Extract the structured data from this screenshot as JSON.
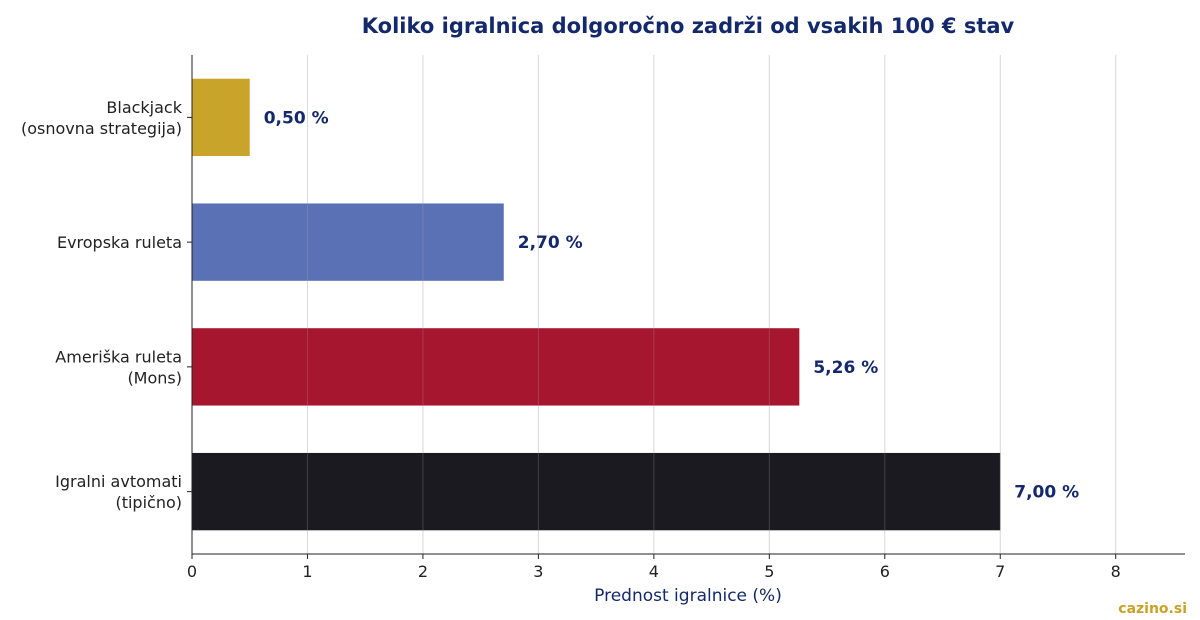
{
  "chart_data": {
    "type": "bar",
    "orientation": "horizontal",
    "title": "Koliko igralnica dolgoročno zadrži od vsakih 100 € stav",
    "xlabel": "Prednost igralnice (%)",
    "ylabel": "",
    "xlim": [
      0,
      8.6
    ],
    "xticks": [
      "0",
      "1",
      "2",
      "3",
      "4",
      "5",
      "6",
      "7",
      "8"
    ],
    "grid": "vertical",
    "categories": [
      [
        "Blackjack",
        "(osnovna strategija)"
      ],
      [
        "Evropska ruleta"
      ],
      [
        "Ameriška ruleta",
        "(Mons)"
      ],
      [
        "Igralni avtomati",
        "(tipično)"
      ]
    ],
    "values": [
      0.5,
      2.7,
      5.26,
      7.0
    ],
    "value_labels": [
      "0,50 %",
      "2,70 %",
      "5,26 %",
      "7,00 %"
    ],
    "colors": [
      "#c9a42b",
      "#5a72b5",
      "#a6162e",
      "#1b1a20"
    ]
  },
  "watermark": "cazino.si"
}
